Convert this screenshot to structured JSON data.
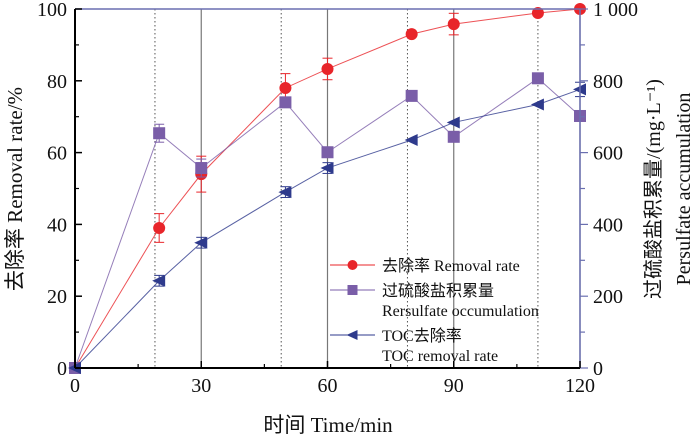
{
  "chart_data": {
    "type": "line",
    "x": [
      0,
      20,
      30,
      50,
      60,
      80,
      90,
      110,
      120
    ],
    "xlabel": "时间 Time/min",
    "ylabel_left": "去除率 Removal rate/%",
    "ylabel_right_cn": "过硫酸盐积累量/(mg·L⁻¹)",
    "ylabel_right_en": "Persulfate accumulation",
    "xlim": [
      0,
      120
    ],
    "ylim_left": [
      0,
      100
    ],
    "ylim_right": [
      0,
      1000
    ],
    "xticks": [
      "0",
      "30",
      "60",
      "90",
      "120"
    ],
    "yticks_left": [
      "0",
      "20",
      "40",
      "60",
      "80",
      "100"
    ],
    "yticks_right": [
      "0",
      "200",
      "400",
      "600",
      "800",
      "1 000"
    ],
    "series": [
      {
        "name": "去除率 Removal rate",
        "axis": "left",
        "marker": "circle",
        "color": "#e8252a",
        "values": [
          0,
          39,
          54,
          78,
          83.3,
          93,
          95.8,
          98.9,
          100
        ],
        "errors": [
          0,
          4,
          5,
          4,
          3,
          0,
          3,
          0,
          0
        ]
      },
      {
        "name": "过硫酸盐积累量",
        "name2": "Rersulfate occumulation",
        "axis": "right",
        "marker": "square",
        "color": "#7a5ea8",
        "values": [
          0,
          654,
          557,
          740,
          601,
          758,
          644,
          807,
          702
        ],
        "errors": [
          0,
          25,
          25,
          0,
          0,
          0,
          0,
          0,
          0
        ]
      },
      {
        "name": "TOC去除率",
        "name2": "TOC removal rate",
        "axis": "left",
        "marker": "triangle-left",
        "color": "#2e3a8c",
        "values": [
          0,
          24.3,
          34.9,
          49,
          55.7,
          63.5,
          68.4,
          73.4,
          77.6
        ],
        "errors": [
          0,
          1.5,
          1.5,
          1.5,
          1.5,
          0,
          0,
          0,
          2
        ]
      }
    ],
    "vlines_dotted": [
      19,
      49,
      79,
      110
    ],
    "vlines_solid": [
      30,
      60,
      90,
      120
    ],
    "legend_position": "bottom-right",
    "grid": false
  }
}
